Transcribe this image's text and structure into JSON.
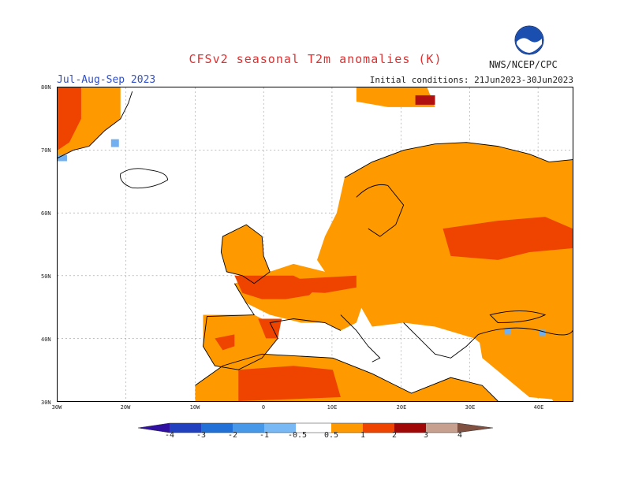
{
  "header": {
    "title": "CFSv2 seasonal T2m anomalies (K)",
    "period": "Jul-Aug-Sep 2023",
    "initial_conditions": "Initial conditions: 21Jun2023-30Jun2023",
    "agency": "NWS/NCEP/CPC",
    "logo_icon": "noaa-logo-icon"
  },
  "map": {
    "lat_labels": [
      "80N",
      "70N",
      "60N",
      "50N",
      "40N",
      "30N"
    ],
    "lon_labels": [
      "30W",
      "20W",
      "10W",
      "0",
      "10E",
      "20E",
      "30E",
      "40E"
    ],
    "colors": {
      "warm_05_1": "#ff9900",
      "warm_1_2": "#ee4400",
      "warm_2_3": "#b01010",
      "cool_05_1": "#70b0f0"
    }
  },
  "colorbar": {
    "labels": [
      "-4",
      "-3",
      "-2",
      "-1",
      "-0.5",
      "0.5",
      "1",
      "2",
      "3",
      "4"
    ],
    "colors": [
      "#3010a0",
      "#2040c0",
      "#2070d8",
      "#4898ea",
      "#78b8f4",
      "#ffffff",
      "#ff9900",
      "#ee4400",
      "#a00808",
      "#c8a090",
      "#805040"
    ]
  }
}
